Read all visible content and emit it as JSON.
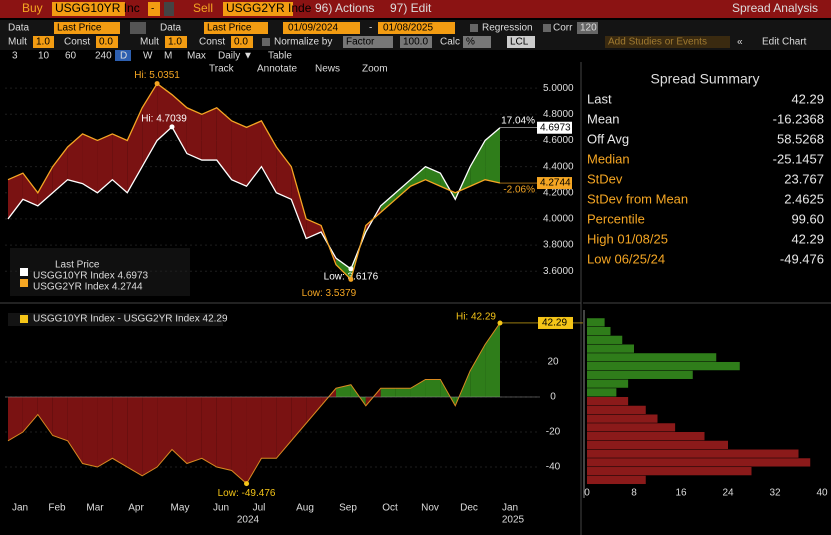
{
  "toolbar": {
    "buy": "Buy",
    "buy_ticker": "USGG10YR Inc",
    "dash": "-",
    "sell": "Sell",
    "sell_ticker": "USGG2YR Inde",
    "actions": "96) Actions",
    "edit": "97) Edit",
    "title": "Spread Analysis"
  },
  "row2": {
    "data1": "Data",
    "field1": "Last Price",
    "data2": "Data",
    "field2": "Last Price",
    "start": "01/09/2024",
    "sep": "-",
    "end": "01/08/2025",
    "regression": "Regression",
    "corr": "Corr",
    "corr_value": "120"
  },
  "row3": {
    "mult1": "Mult",
    "mult1_value": "1.0",
    "const1": "Const",
    "const1_value": "0.0",
    "mult2": "Mult",
    "mult2_value": "1.0",
    "const2": "Const",
    "const2_value": "0.0",
    "normalize": "Normalize by",
    "factor": "Factor",
    "factor_value": "100.0",
    "calc": "Calc",
    "calc_value": "%",
    "lcl": "LCL",
    "studies": "Add Studies or Events",
    "edit_chart": "Edit Chart"
  },
  "periods": [
    "3",
    "10",
    "60",
    "240",
    "D",
    "W",
    "M",
    "Max",
    "Daily ▼",
    "Table"
  ],
  "chart_tools": [
    "Track",
    "Annotate",
    "News",
    "Zoom"
  ],
  "months": [
    "Jan",
    "Feb",
    "Mar",
    "Apr",
    "May",
    "Jun",
    "Jul",
    "Aug",
    "Sep",
    "Oct",
    "Nov",
    "Dec",
    "Jan"
  ],
  "years": [
    "2024",
    "2025"
  ],
  "price_chart": {
    "legend_title": "Last Price",
    "series": [
      {
        "name": "USGG10YR Index 4.6973",
        "color": "#ffffff",
        "values": [
          4.0,
          4.15,
          4.1,
          4.2,
          4.3,
          4.27,
          4.2,
          4.3,
          4.2,
          4.4,
          4.6,
          4.7039,
          4.5,
          4.45,
          4.45,
          4.3,
          4.25,
          4.4,
          4.2,
          4.15,
          3.85,
          3.9,
          3.7,
          3.6176,
          3.9,
          4.1,
          4.2,
          4.3,
          4.4,
          4.35,
          4.15,
          4.4,
          4.6,
          4.6973
        ]
      },
      {
        "name": "USGG2YR Index 4.2744",
        "color": "#f5a623",
        "values": [
          4.3,
          4.35,
          4.2,
          4.4,
          4.55,
          4.65,
          4.6,
          4.65,
          4.6,
          4.85,
          5.0351,
          4.95,
          4.85,
          4.8,
          4.85,
          4.75,
          4.7,
          4.75,
          4.55,
          4.4,
          4.0,
          3.95,
          3.65,
          3.5379,
          3.95,
          4.05,
          4.15,
          4.25,
          4.3,
          4.25,
          4.2,
          4.25,
          4.3,
          4.2744
        ]
      }
    ],
    "ylim": [
      3.38,
      5.2
    ],
    "yticks": [
      {
        "value": 3.6,
        "label": "3.6000"
      },
      {
        "value": 3.8,
        "label": "3.8000"
      },
      {
        "value": 4.0,
        "label": "4.0000"
      },
      {
        "value": 4.2,
        "label": "4.2000"
      },
      {
        "value": 4.4,
        "label": "4.4000"
      },
      {
        "value": 4.6,
        "label": "4.6000"
      },
      {
        "value": 4.8,
        "label": "4.8000"
      },
      {
        "value": 5.0,
        "label": "5.0000"
      }
    ],
    "hi_labels": [
      "Hi: 4.7039",
      "Hi: 5.0351"
    ],
    "low_labels": [
      "Low: 3.6176",
      "Low: 3.5379"
    ],
    "change_labels": [
      "17.04%",
      "-2.06%"
    ],
    "last_labels": [
      "4.6973",
      "4.2744"
    ]
  },
  "spread_chart": {
    "name": "USGG10YR Index - USGG2YR Index 42.29",
    "values": [
      -25,
      -20,
      -10,
      -22,
      -25,
      -38,
      -40,
      -35,
      -40,
      -45,
      -40,
      -30,
      -38,
      -35,
      -40,
      -42,
      -49.476,
      -35,
      -35,
      -25,
      -15,
      -5,
      5,
      7,
      -5,
      5,
      5,
      5,
      10,
      10,
      -5,
      15,
      30,
      42.29
    ],
    "ylim": [
      -57.7,
      49.7
    ],
    "yticks": [
      -40,
      -20,
      0,
      20
    ],
    "hi_label": "Hi: 42.29",
    "low_label": "Low: -49.476",
    "last_label": "42.29"
  },
  "histogram": {
    "bins": [
      -50,
      -45,
      -40,
      -35,
      -30,
      -25,
      -20,
      -15,
      -10,
      -5,
      0,
      5,
      10,
      15,
      20,
      25,
      30,
      35,
      40,
      45
    ],
    "counts": [
      10,
      28,
      38,
      36,
      24,
      20,
      15,
      12,
      10,
      7,
      5,
      7,
      18,
      26,
      22,
      8,
      6,
      4,
      3
    ],
    "xlim": [
      0,
      40
    ],
    "xticks": [
      0,
      8,
      16,
      24,
      32,
      40
    ]
  },
  "summary": {
    "title": "Spread Summary",
    "rows": [
      {
        "label": "Last",
        "value": "42.29"
      },
      {
        "label": "Mean",
        "value": "-16.2368"
      },
      {
        "label": "Off Avg",
        "value": "58.5268"
      },
      {
        "label": "Median",
        "value": "-25.1457"
      },
      {
        "label": "StDev",
        "value": "23.767"
      },
      {
        "label": "StDev from Mean",
        "value": "2.4625"
      },
      {
        "label": "Percentile",
        "value": "99.60"
      },
      {
        "label": "High 01/08/25",
        "value": "42.29"
      },
      {
        "label": "Low 06/25/24",
        "value": "-49.476"
      }
    ]
  }
}
